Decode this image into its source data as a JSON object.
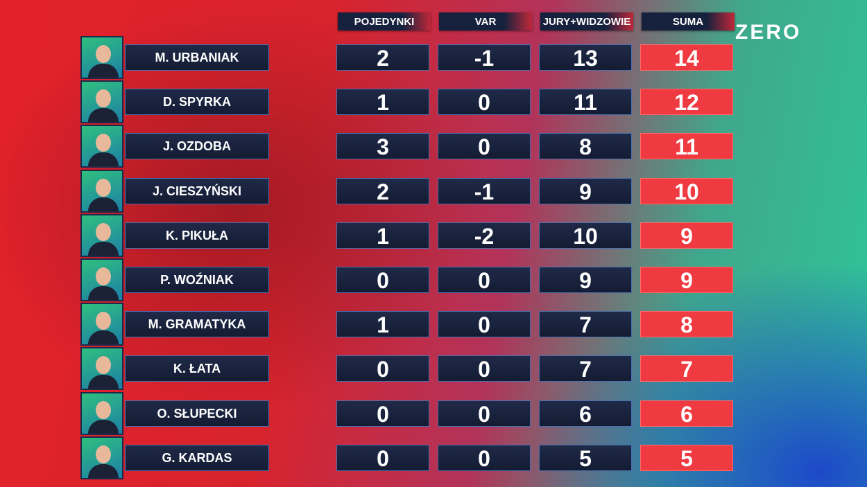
{
  "logo": "ZERO",
  "table": {
    "header": [
      "POJEDYNKI",
      "VAR",
      "JURY+WIDZOWIE",
      "SUMA"
    ],
    "rows": [
      [
        "M. URBANIAK",
        2,
        -1,
        13,
        14
      ],
      [
        "D. SPYRKA",
        1,
        0,
        11,
        12
      ],
      [
        "J. OZDOBA",
        3,
        0,
        8,
        11
      ],
      [
        "J. CIESZYŃSKI",
        2,
        -1,
        9,
        10
      ],
      [
        "K. PIKUŁA",
        1,
        -2,
        10,
        9
      ],
      [
        "P. WOŹNIAK",
        0,
        0,
        9,
        9
      ],
      [
        "M. GRAMATYKA",
        1,
        0,
        7,
        8
      ],
      [
        "K. ŁATA",
        0,
        0,
        7,
        7
      ],
      [
        "O. SŁUPECKI",
        0,
        0,
        6,
        6
      ],
      [
        "G. KARDAS",
        0,
        0,
        5,
        5
      ]
    ]
  }
}
